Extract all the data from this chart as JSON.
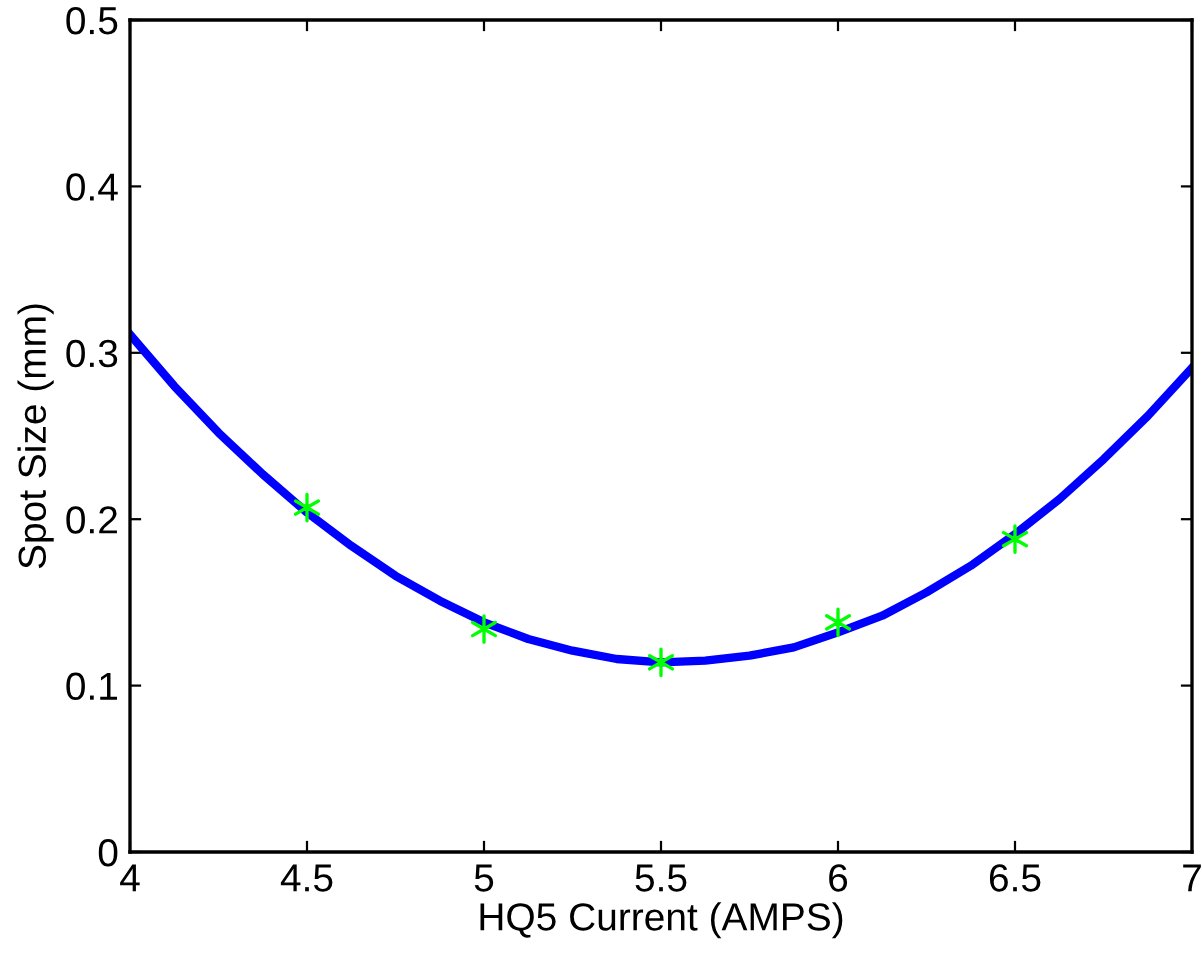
{
  "chart_data": {
    "type": "line",
    "xlabel": "HQ5 Current (AMPS)",
    "ylabel": "Spot Size (mm)",
    "xlim": [
      4,
      7
    ],
    "xticks": [
      4,
      4.5,
      5,
      5.5,
      6,
      6.5,
      7
    ],
    "ylim": [
      0,
      0.5
    ],
    "yticks": [
      0,
      0.1,
      0.2,
      0.3,
      0.4,
      0.5
    ],
    "grid": false,
    "legend": false,
    "series": [
      {
        "color": "#0000ff",
        "marker": "none",
        "line_style": "solid",
        "x": [
          4,
          4.125,
          4.25,
          4.375,
          4.5,
          4.625,
          4.75,
          4.875,
          5,
          5.125,
          5.25,
          5.375,
          5.5,
          5.625,
          5.75,
          5.875,
          6,
          6.125,
          6.25,
          6.375,
          6.5,
          6.625,
          6.75,
          6.875,
          7
        ],
        "values": [
          0.311,
          0.28,
          0.252,
          0.227,
          0.204,
          0.184,
          0.166,
          0.151,
          0.138,
          0.128,
          0.121,
          0.116,
          0.114,
          0.115,
          0.118,
          0.123,
          0.132,
          0.142,
          0.156,
          0.172,
          0.191,
          0.212,
          0.236,
          0.262,
          0.291
        ]
      },
      {
        "type": "scatter",
        "color": "#00ff00",
        "marker": "cross",
        "x": [
          4.5,
          5,
          5.5,
          6,
          6.5
        ],
        "values": [
          0.207,
          0.134,
          0.114,
          0.138,
          0.188
        ]
      }
    ]
  }
}
